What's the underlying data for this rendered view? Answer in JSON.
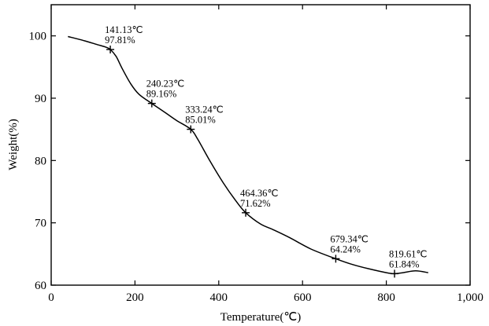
{
  "chart_data": {
    "type": "line",
    "xlabel": "Temperature(℃)",
    "ylabel": "Weight(%)",
    "xlim": [
      0,
      1000
    ],
    "ylim": [
      60,
      105
    ],
    "xticks": [
      0,
      200,
      400,
      600,
      800,
      1000
    ],
    "xtick_labels": [
      "0",
      "200",
      "400",
      "600",
      "800",
      "1,000"
    ],
    "yticks": [
      60,
      70,
      80,
      90,
      100
    ],
    "ytick_labels": [
      "60",
      "70",
      "80",
      "90",
      "100"
    ],
    "grid": false,
    "series": [
      {
        "x": [
          40,
          80,
          110,
          130,
          141.13,
          155,
          170,
          190,
          210,
          240.23,
          270,
          300,
          333.24,
          350,
          380,
          410,
          440,
          464.36,
          500,
          530,
          570,
          620,
          679.34,
          720,
          760,
          800,
          819.61,
          840,
          870,
          900
        ],
        "y": [
          99.9,
          99.2,
          98.6,
          98.2,
          97.81,
          96.7,
          94.7,
          92.3,
          90.6,
          89.16,
          87.8,
          86.4,
          85.01,
          83.4,
          79.8,
          76.5,
          73.6,
          71.62,
          69.8,
          68.9,
          67.6,
          65.8,
          64.24,
          63.3,
          62.6,
          62.0,
          61.84,
          62.0,
          62.3,
          62.0
        ]
      }
    ],
    "annotations": [
      {
        "x": 141.13,
        "y": 97.81,
        "temp_label": "141.13℃",
        "weight_label": "97.81%"
      },
      {
        "x": 240.23,
        "y": 89.16,
        "temp_label": "240.23℃",
        "weight_label": "89.16%"
      },
      {
        "x": 333.24,
        "y": 85.01,
        "temp_label": "333.24℃",
        "weight_label": "85.01%"
      },
      {
        "x": 464.36,
        "y": 71.62,
        "temp_label": "464.36℃",
        "weight_label": "71.62%"
      },
      {
        "x": 679.34,
        "y": 64.24,
        "temp_label": "679.34℃",
        "weight_label": "64.24%"
      },
      {
        "x": 819.61,
        "y": 61.84,
        "temp_label": "819.61℃",
        "weight_label": "61.84%"
      }
    ]
  }
}
